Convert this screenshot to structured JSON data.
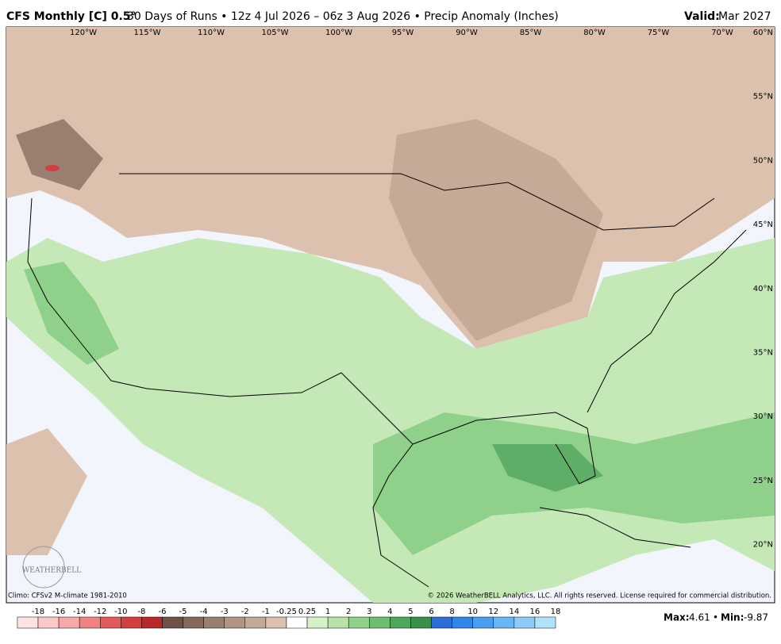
{
  "header": {
    "model": "CFS Monthly [C] 0.5°",
    "description": "30 Days of Runs • 12z 4 Jul 2026 – 06z 3 Aug 2026 • Precip Anomaly (Inches)",
    "valid_label": "Valid:",
    "valid_value": "Mar 2027"
  },
  "map": {
    "lon_labels": [
      "120°W",
      "115°W",
      "110°W",
      "105°W",
      "100°W",
      "95°W",
      "90°W",
      "85°W",
      "80°W",
      "75°W",
      "70°W"
    ],
    "lat_labels": [
      "60°N",
      "55°N",
      "50°N",
      "45°N",
      "40°N",
      "35°N",
      "30°N",
      "25°N",
      "20°N"
    ],
    "logo": "WEATHERBELL",
    "climo": "Climo: CFSv2 M-climate 1981-2010",
    "copyright": "© 2026 WeatherBELL Analytics, LLC. All rights reserved. License required for commercial distribution."
  },
  "colorbar": {
    "labels": [
      "-18",
      "-16",
      "-14",
      "-12",
      "-10",
      "-8",
      "-6",
      "-5",
      "-4",
      "-3",
      "-2",
      "-1",
      "-0.25",
      "0.25",
      "1",
      "2",
      "3",
      "4",
      "5",
      "6",
      "8",
      "10",
      "12",
      "14",
      "16",
      "18"
    ],
    "colors": [
      "#fde3e3",
      "#fbc9c9",
      "#f7a8a8",
      "#f08282",
      "#e05c5c",
      "#d04040",
      "#b82828",
      "#6e5248",
      "#84685c",
      "#9a7e70",
      "#b09484",
      "#c6aa98",
      "#dcc2ae",
      "#ffffff",
      "#d6f0c8",
      "#b8e3a8",
      "#8fd18a",
      "#6cbf72",
      "#4ea85c",
      "#3a8f4a",
      "#2b6fd6",
      "#2f86e6",
      "#4a9ef0",
      "#6ab6f5",
      "#8ccbf7",
      "#b0e2fa"
    ]
  },
  "stats": {
    "max_label": "Max:",
    "max": 4.61,
    "separator": "•",
    "min_label": "Min:",
    "min": -9.87
  }
}
